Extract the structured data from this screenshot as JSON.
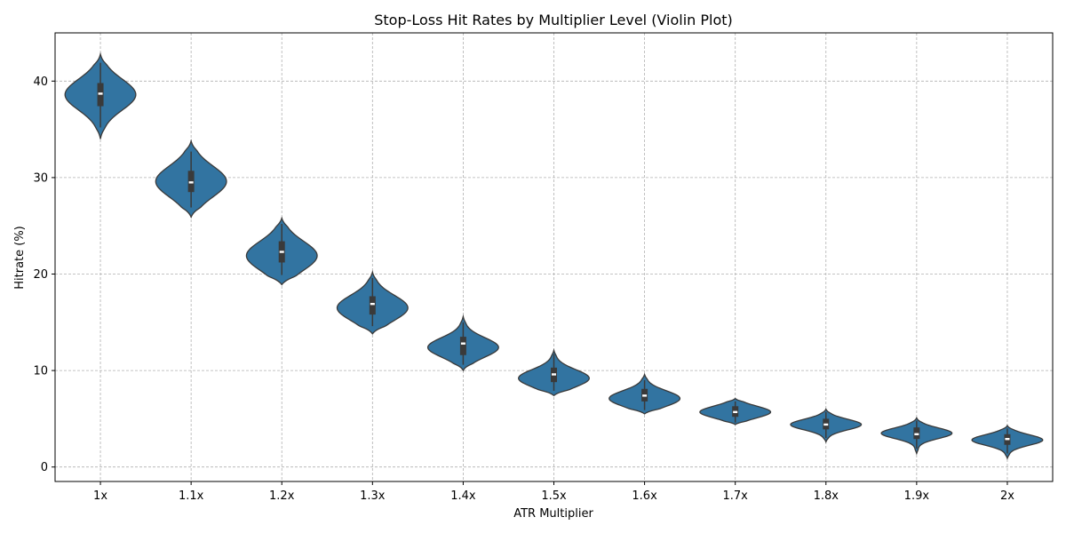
{
  "chart_data": {
    "type": "violin",
    "title": "Stop-Loss Hit Rates by Multiplier Level (Violin Plot)",
    "xlabel": "ATR Multiplier",
    "ylabel": "Hitrate (%)",
    "ylim": [
      -1.5,
      45
    ],
    "yticks": [
      0,
      10,
      20,
      30,
      40
    ],
    "grid": true,
    "color": "#3274a1",
    "categories": [
      "1x",
      "1.1x",
      "1.2x",
      "1.3x",
      "1.4x",
      "1.5x",
      "1.6x",
      "1.7x",
      "1.8x",
      "1.9x",
      "2x"
    ],
    "series": [
      {
        "category": "1x",
        "median": 38.7,
        "q1": 37.4,
        "q3": 39.8,
        "whisker_low": 35.2,
        "whisker_high": 41.9,
        "min": 34.0,
        "max": 42.8,
        "mode": 38.6,
        "spread": 1.6
      },
      {
        "category": "1.1x",
        "median": 29.5,
        "q1": 28.5,
        "q3": 30.7,
        "whisker_low": 26.9,
        "whisker_high": 32.7,
        "min": 25.9,
        "max": 33.8,
        "mode": 29.6,
        "spread": 1.6
      },
      {
        "category": "1.2x",
        "median": 22.3,
        "q1": 21.2,
        "q3": 23.4,
        "whisker_low": 19.9,
        "whisker_high": 25.2,
        "min": 18.9,
        "max": 25.8,
        "mode": 21.9,
        "spread": 1.5
      },
      {
        "category": "1.3x",
        "median": 16.9,
        "q1": 15.8,
        "q3": 17.7,
        "whisker_low": 14.6,
        "whisker_high": 19.6,
        "min": 13.8,
        "max": 20.2,
        "mode": 16.5,
        "spread": 1.3
      },
      {
        "category": "1.4x",
        "median": 12.8,
        "q1": 11.6,
        "q3": 13.5,
        "whisker_low": 10.6,
        "whisker_high": 15.0,
        "min": 10.0,
        "max": 15.6,
        "mode": 12.4,
        "spread": 1.0
      },
      {
        "category": "1.5x",
        "median": 9.6,
        "q1": 8.8,
        "q3": 10.3,
        "whisker_low": 7.9,
        "whisker_high": 11.7,
        "min": 7.4,
        "max": 12.1,
        "mode": 9.2,
        "spread": 0.9
      },
      {
        "category": "1.6x",
        "median": 7.4,
        "q1": 6.8,
        "q3": 8.1,
        "whisker_low": 5.9,
        "whisker_high": 9.0,
        "min": 5.5,
        "max": 9.6,
        "mode": 7.1,
        "spread": 0.8
      },
      {
        "category": "1.7x",
        "median": 5.7,
        "q1": 5.2,
        "q3": 6.3,
        "whisker_low": 4.6,
        "whisker_high": 6.8,
        "min": 4.4,
        "max": 7.1,
        "mode": 5.7,
        "spread": 0.6
      },
      {
        "category": "1.8x",
        "median": 4.4,
        "q1": 3.9,
        "q3": 5.0,
        "whisker_low": 3.0,
        "whisker_high": 5.7,
        "min": 2.6,
        "max": 6.0,
        "mode": 4.4,
        "spread": 0.55
      },
      {
        "category": "1.9x",
        "median": 3.4,
        "q1": 2.9,
        "q3": 4.1,
        "whisker_low": 1.9,
        "whisker_high": 4.8,
        "min": 1.4,
        "max": 5.1,
        "mode": 3.5,
        "spread": 0.55
      },
      {
        "category": "2x",
        "median": 2.9,
        "q1": 2.3,
        "q3": 3.4,
        "whisker_low": 1.4,
        "whisker_high": 4.0,
        "min": 0.9,
        "max": 4.3,
        "mode": 2.8,
        "spread": 0.55
      }
    ]
  }
}
